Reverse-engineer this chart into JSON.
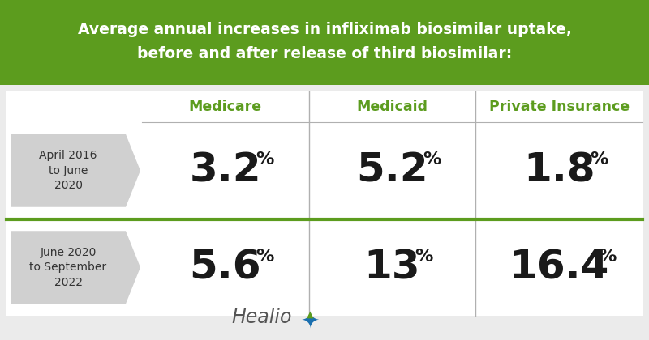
{
  "title_line1": "Average annual increases in infliximab biosimilar uptake,",
  "title_line2": "before and after release of third biosimilar:",
  "title_bg_color": "#5c9c1e",
  "title_text_color": "#ffffff",
  "bg_color": "#ebebeb",
  "table_bg_color": "#ffffff",
  "col_headers": [
    "Medicare",
    "Medicaid",
    "Private Insurance"
  ],
  "col_header_color": "#5c9c1e",
  "row_labels": [
    "April 2016\nto June\n2020",
    "June 2020\nto September\n2022"
  ],
  "row_label_bg_color": "#d0d0d0",
  "values_row1": [
    "3.2",
    "5.2",
    "1.8"
  ],
  "values_row2": [
    "5.6",
    "13",
    "16.4"
  ],
  "value_color": "#1a1a1a",
  "divider_color": "#5c9c1e",
  "col_divider_color": "#b0b0b0",
  "healio_text_color": "#555555",
  "healio_star_blue": "#1a6faf",
  "healio_star_green": "#5c9c1e",
  "title_fontsize": 13.5,
  "header_fontsize": 12.5,
  "value_fontsize": 36,
  "pct_fontsize": 16,
  "label_fontsize": 10,
  "healio_fontsize": 17
}
